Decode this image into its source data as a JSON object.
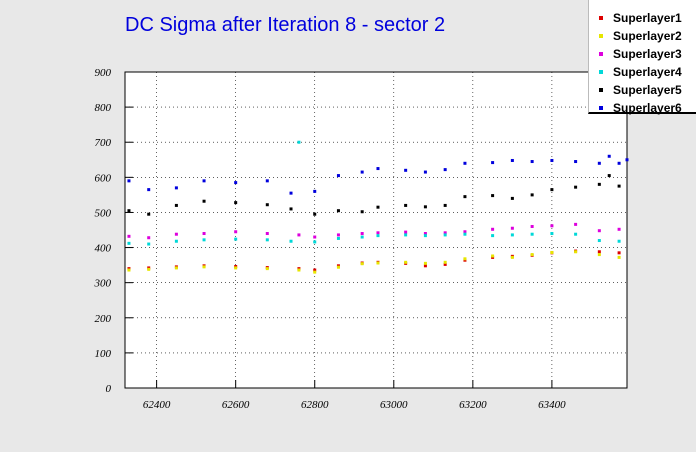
{
  "chart_data": {
    "type": "scatter",
    "title": "DC Sigma after Iteration 8 - sector 2",
    "xlabel": "",
    "ylabel": "",
    "xlim": [
      62320,
      63590
    ],
    "ylim": [
      0,
      900
    ],
    "x_ticks": [
      62400,
      62600,
      62800,
      63000,
      63200,
      63400
    ],
    "y_ticks": [
      0,
      100,
      200,
      300,
      400,
      500,
      600,
      700,
      800,
      900
    ],
    "grid": true,
    "legend_position": "top-right",
    "series": [
      {
        "name": "Superlayer1",
        "color": "#dd0000",
        "points": [
          [
            62330,
            340
          ],
          [
            62380,
            342
          ],
          [
            62450,
            345
          ],
          [
            62520,
            348
          ],
          [
            62600,
            346
          ],
          [
            62680,
            343
          ],
          [
            62760,
            340
          ],
          [
            62800,
            336
          ],
          [
            62860,
            348
          ],
          [
            62920,
            356
          ],
          [
            62960,
            358
          ],
          [
            63030,
            355
          ],
          [
            63080,
            348
          ],
          [
            63130,
            352
          ],
          [
            63180,
            364
          ],
          [
            63250,
            372
          ],
          [
            63300,
            375
          ],
          [
            63350,
            378
          ],
          [
            63400,
            385
          ],
          [
            63460,
            390
          ],
          [
            63520,
            388
          ],
          [
            63570,
            385
          ]
        ]
      },
      {
        "name": "Superlayer2",
        "color": "#e6e600",
        "points": [
          [
            62330,
            336
          ],
          [
            62380,
            338
          ],
          [
            62450,
            342
          ],
          [
            62520,
            345
          ],
          [
            62600,
            342
          ],
          [
            62680,
            340
          ],
          [
            62760,
            336
          ],
          [
            62800,
            330
          ],
          [
            62860,
            344
          ],
          [
            62920,
            354
          ],
          [
            62960,
            356
          ],
          [
            63030,
            358
          ],
          [
            63080,
            355
          ],
          [
            63130,
            358
          ],
          [
            63180,
            368
          ],
          [
            63250,
            376
          ],
          [
            63300,
            372
          ],
          [
            63350,
            380
          ],
          [
            63400,
            386
          ],
          [
            63460,
            388
          ],
          [
            63520,
            380
          ],
          [
            63570,
            372
          ]
        ]
      },
      {
        "name": "Superlayer3",
        "color": "#dd00dd",
        "points": [
          [
            62330,
            432
          ],
          [
            62380,
            428
          ],
          [
            62450,
            438
          ],
          [
            62520,
            440
          ],
          [
            62600,
            445
          ],
          [
            62680,
            440
          ],
          [
            62760,
            436
          ],
          [
            62800,
            430
          ],
          [
            62860,
            436
          ],
          [
            62920,
            440
          ],
          [
            62960,
            442
          ],
          [
            63030,
            444
          ],
          [
            63080,
            440
          ],
          [
            63130,
            442
          ],
          [
            63180,
            445
          ],
          [
            63250,
            452
          ],
          [
            63300,
            455
          ],
          [
            63350,
            460
          ],
          [
            63400,
            462
          ],
          [
            63460,
            466
          ],
          [
            63520,
            448
          ],
          [
            63570,
            452
          ]
        ]
      },
      {
        "name": "Superlayer4",
        "color": "#00d8d8",
        "points": [
          [
            62330,
            412
          ],
          [
            62380,
            410
          ],
          [
            62450,
            418
          ],
          [
            62520,
            422
          ],
          [
            62600,
            424
          ],
          [
            62680,
            422
          ],
          [
            62740,
            418
          ],
          [
            62760,
            700
          ],
          [
            62800,
            416
          ],
          [
            62860,
            426
          ],
          [
            62920,
            430
          ],
          [
            62960,
            434
          ],
          [
            63030,
            436
          ],
          [
            63080,
            434
          ],
          [
            63130,
            436
          ],
          [
            63180,
            438
          ],
          [
            63250,
            434
          ],
          [
            63300,
            436
          ],
          [
            63350,
            438
          ],
          [
            63400,
            440
          ],
          [
            63460,
            438
          ],
          [
            63520,
            420
          ],
          [
            63570,
            418
          ]
        ]
      },
      {
        "name": "Superlayer5",
        "color": "#000000",
        "points": [
          [
            62330,
            505
          ],
          [
            62380,
            495
          ],
          [
            62450,
            520
          ],
          [
            62520,
            532
          ],
          [
            62600,
            528
          ],
          [
            62680,
            522
          ],
          [
            62740,
            510
          ],
          [
            62800,
            495
          ],
          [
            62860,
            505
          ],
          [
            62920,
            502
          ],
          [
            62960,
            515
          ],
          [
            63030,
            520
          ],
          [
            63080,
            516
          ],
          [
            63130,
            520
          ],
          [
            63180,
            545
          ],
          [
            63250,
            548
          ],
          [
            63300,
            540
          ],
          [
            63350,
            550
          ],
          [
            63400,
            565
          ],
          [
            63460,
            572
          ],
          [
            63520,
            580
          ],
          [
            63545,
            605
          ],
          [
            63570,
            575
          ]
        ]
      },
      {
        "name": "Superlayer6",
        "color": "#0000dd",
        "points": [
          [
            62330,
            590
          ],
          [
            62380,
            565
          ],
          [
            62450,
            570
          ],
          [
            62520,
            590
          ],
          [
            62600,
            585
          ],
          [
            62680,
            590
          ],
          [
            62740,
            555
          ],
          [
            62800,
            560
          ],
          [
            62860,
            605
          ],
          [
            62920,
            615
          ],
          [
            62960,
            625
          ],
          [
            63030,
            620
          ],
          [
            63080,
            615
          ],
          [
            63130,
            622
          ],
          [
            63180,
            640
          ],
          [
            63250,
            642
          ],
          [
            63300,
            648
          ],
          [
            63350,
            645
          ],
          [
            63400,
            648
          ],
          [
            63460,
            645
          ],
          [
            63520,
            640
          ],
          [
            63545,
            660
          ],
          [
            63570,
            640
          ],
          [
            63590,
            650
          ]
        ]
      }
    ]
  },
  "colors": {
    "background": "#e8e8e8",
    "plot_background": "#ffffff",
    "title": "#0000dd"
  }
}
